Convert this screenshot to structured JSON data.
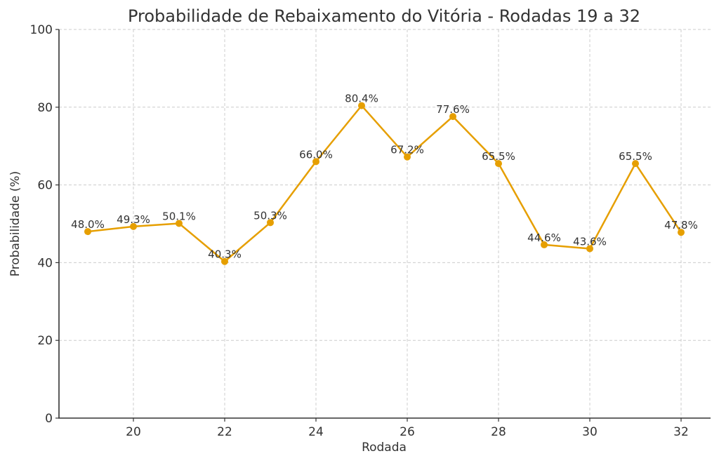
{
  "chart_data": {
    "type": "line",
    "title": "Probabilidade de Rebaixamento do Vitória - Rodadas 19 a 32",
    "xlabel": "Rodada",
    "ylabel": "Probabilidade (%)",
    "x": [
      19,
      20,
      21,
      22,
      23,
      24,
      25,
      26,
      27,
      28,
      29,
      30,
      31,
      32
    ],
    "series": [
      {
        "name": "Probabilidade de Rebaixamento",
        "values": [
          48.0,
          49.3,
          50.1,
          40.3,
          50.3,
          66.0,
          80.4,
          67.2,
          77.6,
          65.5,
          44.6,
          43.6,
          65.5,
          47.8
        ],
        "labels": [
          "48.0%",
          "49.3%",
          "50.1%",
          "40.3%",
          "50.3%",
          "66.0%",
          "80.4%",
          "67.2%",
          "77.6%",
          "65.5%",
          "44.6%",
          "43.6%",
          "65.5%",
          "47.8%"
        ],
        "color": "#E69F00",
        "marker": "circle"
      }
    ],
    "xticks": [
      20,
      22,
      24,
      26,
      28,
      30,
      32
    ],
    "yticks": [
      0,
      20,
      40,
      60,
      80,
      100
    ],
    "xlim": [
      18.5,
      32.6
    ],
    "ylim": [
      0,
      100
    ],
    "grid": true,
    "legend": null
  }
}
